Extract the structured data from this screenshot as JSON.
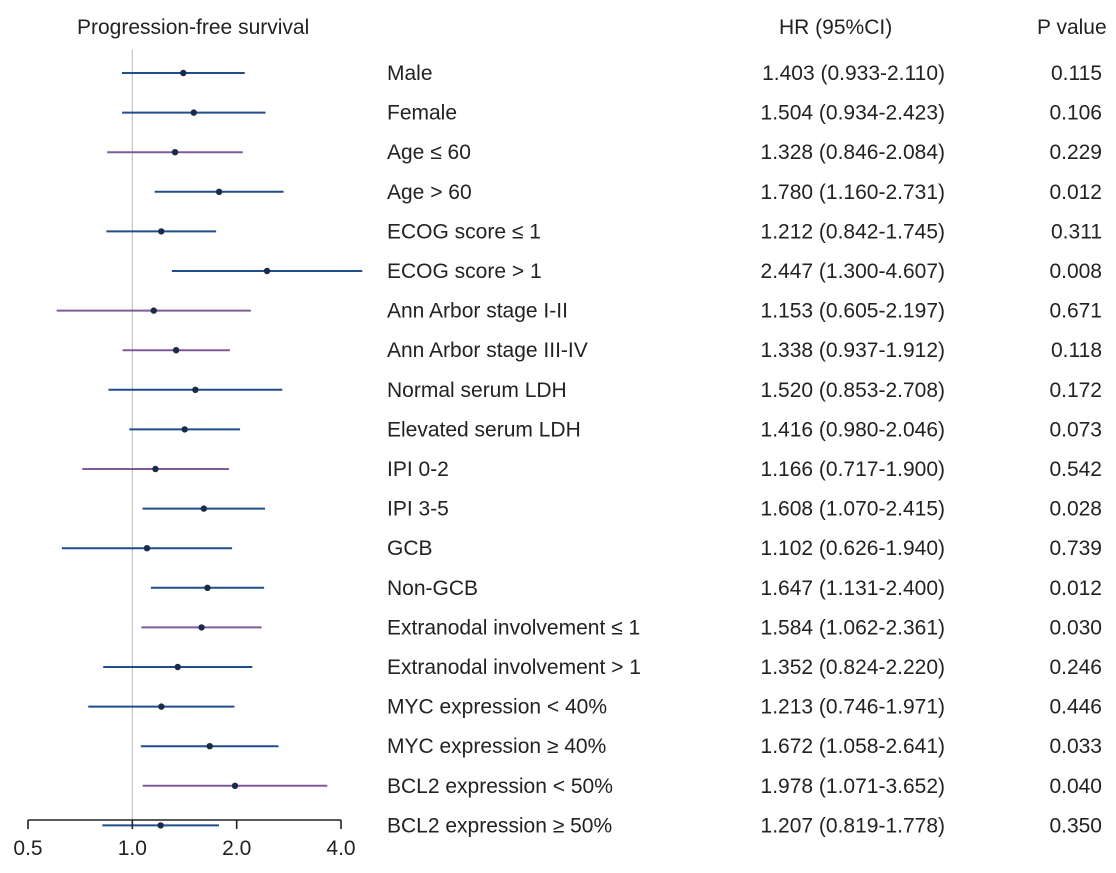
{
  "headers": {
    "panel_title": "Progression-free survival",
    "hr_header": "HR (95%CI)",
    "p_header": "P value"
  },
  "colors": {
    "blue": "#1f4e8c",
    "purple": "#7e5a9b",
    "point": "#1b2a4a",
    "refline": "#c9c9c9",
    "axis": "#222222"
  },
  "chart_data": {
    "type": "forest",
    "title": "Progression-free survival",
    "scale": "log2",
    "xlim": [
      0.5,
      4.0
    ],
    "xticks": [
      0.5,
      1.0,
      2.0,
      4.0
    ],
    "xtick_labels": [
      "0.5",
      "1.0",
      "2.0",
      "4.0"
    ],
    "reference_line": 1.0,
    "rows": [
      {
        "label": "Male",
        "hr": 1.403,
        "lo": 0.933,
        "hi": 2.11,
        "hr_text": "1.403 (0.933-2.110)",
        "p": "0.115",
        "color": "blue"
      },
      {
        "label": "Female",
        "hr": 1.504,
        "lo": 0.934,
        "hi": 2.423,
        "hr_text": "1.504 (0.934-2.423)",
        "p": "0.106",
        "color": "blue"
      },
      {
        "label": "Age ≤ 60",
        "hr": 1.328,
        "lo": 0.846,
        "hi": 2.084,
        "hr_text": "1.328 (0.846-2.084)",
        "p": "0.229",
        "color": "purple"
      },
      {
        "label": "Age > 60",
        "hr": 1.78,
        "lo": 1.16,
        "hi": 2.731,
        "hr_text": "1.780 (1.160-2.731)",
        "p": "0.012",
        "color": "blue"
      },
      {
        "label": "ECOG score ≤ 1",
        "hr": 1.212,
        "lo": 0.842,
        "hi": 1.745,
        "hr_text": "1.212 (0.842-1.745)",
        "p": "0.311",
        "color": "blue"
      },
      {
        "label": "ECOG score > 1",
        "hr": 2.447,
        "lo": 1.3,
        "hi": 4.607,
        "hr_text": "2.447 (1.300-4.607)",
        "p": "0.008",
        "color": "blue"
      },
      {
        "label": "Ann Arbor stage I-II",
        "hr": 1.153,
        "lo": 0.605,
        "hi": 2.197,
        "hr_text": "1.153 (0.605-2.197)",
        "p": "0.671",
        "color": "purple"
      },
      {
        "label": "Ann Arbor stage III-IV",
        "hr": 1.338,
        "lo": 0.937,
        "hi": 1.912,
        "hr_text": "1.338 (0.937-1.912)",
        "p": "0.118",
        "color": "purple"
      },
      {
        "label": "Normal serum LDH",
        "hr": 1.52,
        "lo": 0.853,
        "hi": 2.708,
        "hr_text": "1.520 (0.853-2.708)",
        "p": "0.172",
        "color": "blue"
      },
      {
        "label": "Elevated serum LDH",
        "hr": 1.416,
        "lo": 0.98,
        "hi": 2.046,
        "hr_text": "1.416 (0.980-2.046)",
        "p": "0.073",
        "color": "blue"
      },
      {
        "label": "IPI 0-2",
        "hr": 1.166,
        "lo": 0.717,
        "hi": 1.9,
        "hr_text": "1.166 (0.717-1.900)",
        "p": "0.542",
        "color": "purple"
      },
      {
        "label": "IPI 3-5",
        "hr": 1.608,
        "lo": 1.07,
        "hi": 2.415,
        "hr_text": "1.608 (1.070-2.415)",
        "p": "0.028",
        "color": "blue"
      },
      {
        "label": "GCB",
        "hr": 1.102,
        "lo": 0.626,
        "hi": 1.94,
        "hr_text": "1.102 (0.626-1.940)",
        "p": "0.739",
        "color": "blue"
      },
      {
        "label": "Non-GCB",
        "hr": 1.647,
        "lo": 1.131,
        "hi": 2.4,
        "hr_text": "1.647 (1.131-2.400)",
        "p": "0.012",
        "color": "blue"
      },
      {
        "label": "Extranodal involvement ≤ 1",
        "hr": 1.584,
        "lo": 1.062,
        "hi": 2.361,
        "hr_text": "1.584 (1.062-2.361)",
        "p": "0.030",
        "color": "purple"
      },
      {
        "label": "Extranodal involvement > 1",
        "hr": 1.352,
        "lo": 0.824,
        "hi": 2.22,
        "hr_text": "1.352 (0.824-2.220)",
        "p": "0.246",
        "color": "blue"
      },
      {
        "label": "MYC expression < 40%",
        "hr": 1.213,
        "lo": 0.746,
        "hi": 1.971,
        "hr_text": "1.213 (0.746-1.971)",
        "p": "0.446",
        "color": "blue"
      },
      {
        "label": "MYC expression ≥ 40%",
        "hr": 1.672,
        "lo": 1.058,
        "hi": 2.641,
        "hr_text": "1.672 (1.058-2.641)",
        "p": "0.033",
        "color": "blue"
      },
      {
        "label": "BCL2 expression < 50%",
        "hr": 1.978,
        "lo": 1.071,
        "hi": 3.652,
        "hr_text": "1.978 (1.071-3.652)",
        "p": "0.040",
        "color": "purple"
      },
      {
        "label": "BCL2 expression ≥ 50%",
        "hr": 1.207,
        "lo": 0.819,
        "hi": 1.778,
        "hr_text": "1.207 (0.819-1.778)",
        "p": "0.350",
        "color": "blue"
      }
    ]
  }
}
